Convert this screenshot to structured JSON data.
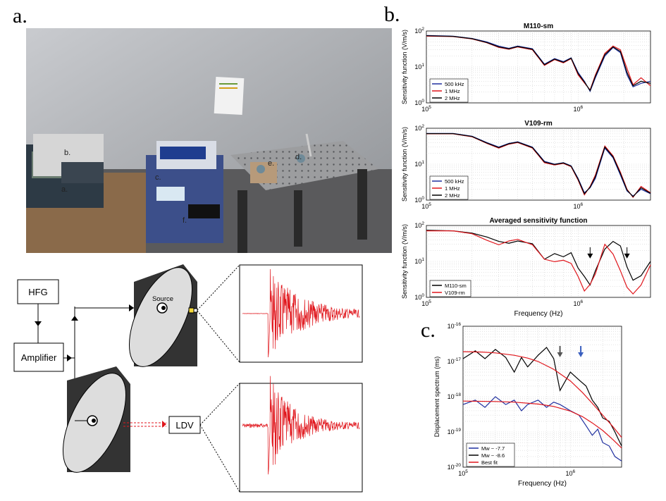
{
  "panel_labels": {
    "a": "a.",
    "b": "b.",
    "c": "c."
  },
  "photo": {
    "labels": [
      {
        "key": "a",
        "text": "a."
      },
      {
        "key": "b",
        "text": "b."
      },
      {
        "key": "c",
        "text": "c."
      },
      {
        "key": "d",
        "text": "d."
      },
      {
        "key": "e",
        "text": "e."
      },
      {
        "key": "f",
        "text": "f."
      }
    ]
  },
  "schematic": {
    "hfg": "HFG",
    "amplifier": "Amplifier",
    "source": "Source",
    "ldv": "LDV"
  },
  "colors": {
    "blue": "#1f2f9f",
    "red": "#e0161c",
    "black": "#000000"
  },
  "chart_data": [
    {
      "type": "line",
      "title": "M110-sm",
      "xlabel": "",
      "ylabel": "Sensitivity function (V/m/s)",
      "xscale": "log",
      "yscale": "log",
      "xlim": [
        100000,
        3000000
      ],
      "ylim": [
        1,
        100
      ],
      "xticks": [
        "10^5",
        "10^6"
      ],
      "yticks": [
        "10^0",
        "10^1",
        "10^2"
      ],
      "grid": true,
      "legend": "bottom-left",
      "series": [
        {
          "name": "500 kHz",
          "color": "#1f2f9f",
          "x": [
            100000,
            150000,
            200000,
            250000,
            300000,
            350000,
            400000,
            500000,
            600000,
            700000,
            800000,
            900000,
            1000000,
            1100000,
            1200000,
            1300000,
            1500000,
            1700000,
            1900000,
            2100000,
            2300000,
            2600000,
            3000000
          ],
          "y": [
            75,
            72,
            62,
            50,
            38,
            33,
            38,
            32,
            12,
            17,
            14,
            18,
            7,
            4,
            2.1,
            5,
            20,
            35,
            25,
            6,
            2.8,
            3.5,
            4
          ]
        },
        {
          "name": "1 MHz",
          "color": "#e0161c",
          "x": [
            100000,
            150000,
            200000,
            250000,
            300000,
            350000,
            400000,
            500000,
            600000,
            700000,
            800000,
            900000,
            1000000,
            1100000,
            1200000,
            1300000,
            1500000,
            1700000,
            1900000,
            2100000,
            2300000,
            2600000,
            3000000
          ],
          "y": [
            72,
            70,
            60,
            47,
            35,
            31,
            36,
            30,
            11,
            16,
            13,
            17,
            6,
            3.6,
            2.3,
            6,
            24,
            38,
            30,
            9,
            3.2,
            5,
            3
          ]
        },
        {
          "name": "2 MHz",
          "color": "#000000",
          "x": [
            100000,
            150000,
            200000,
            250000,
            300000,
            350000,
            400000,
            500000,
            600000,
            700000,
            800000,
            900000,
            1000000,
            1100000,
            1200000,
            1300000,
            1500000,
            1700000,
            1900000,
            2100000,
            2300000,
            2600000,
            3000000
          ],
          "y": [
            74,
            71,
            61,
            48,
            36,
            32,
            37,
            31,
            11.5,
            16.5,
            13.5,
            17.5,
            6.5,
            3.8,
            2.2,
            5.5,
            22,
            36,
            27,
            7,
            3,
            4,
            3.5
          ]
        }
      ]
    },
    {
      "type": "line",
      "title": "V109-rm",
      "xlabel": "",
      "ylabel": "Sensitivity function (V/m/s)",
      "xscale": "log",
      "yscale": "log",
      "xlim": [
        100000,
        3000000
      ],
      "ylim": [
        1,
        100
      ],
      "xticks": [
        "10^5",
        "10^6"
      ],
      "yticks": [
        "10^0",
        "10^1",
        "10^2"
      ],
      "grid": true,
      "legend": "bottom-left",
      "series": [
        {
          "name": "500 kHz",
          "color": "#1f2f9f",
          "x": [
            100000,
            150000,
            200000,
            250000,
            300000,
            350000,
            400000,
            500000,
            600000,
            700000,
            800000,
            900000,
            1000000,
            1100000,
            1200000,
            1300000,
            1500000,
            1700000,
            1900000,
            2100000,
            2300000,
            2600000,
            3000000
          ],
          "y": [
            72,
            72,
            60,
            40,
            30,
            38,
            42,
            30,
            12,
            10,
            11,
            9,
            4,
            1.6,
            2.2,
            4,
            28,
            15,
            5,
            1.8,
            1.3,
            2,
            1.5
          ]
        },
        {
          "name": "1 MHz",
          "color": "#e0161c",
          "x": [
            100000,
            150000,
            200000,
            250000,
            300000,
            350000,
            400000,
            500000,
            600000,
            700000,
            800000,
            900000,
            1000000,
            1100000,
            1200000,
            1300000,
            1500000,
            1700000,
            1900000,
            2100000,
            2300000,
            2600000,
            3000000
          ],
          "y": [
            70,
            70,
            58,
            38,
            28,
            36,
            40,
            28,
            11,
            9.5,
            10.5,
            8.5,
            3.6,
            1.4,
            2.4,
            5,
            32,
            17,
            6,
            2,
            1.2,
            2.4,
            1.6
          ]
        },
        {
          "name": "2 MHz",
          "color": "#000000",
          "x": [
            100000,
            150000,
            200000,
            250000,
            300000,
            350000,
            400000,
            500000,
            600000,
            700000,
            800000,
            900000,
            1000000,
            1100000,
            1200000,
            1300000,
            1500000,
            1700000,
            1900000,
            2100000,
            2300000,
            2600000,
            3000000
          ],
          "y": [
            71,
            71,
            59,
            39,
            29,
            37,
            41,
            29,
            11.5,
            9.8,
            10.8,
            8.8,
            3.8,
            1.5,
            2.3,
            4.5,
            30,
            16,
            5.5,
            1.9,
            1.25,
            2.2,
            1.55
          ]
        }
      ]
    },
    {
      "type": "line",
      "title": "Averaged sensitivity function",
      "xlabel": "Frequency (Hz)",
      "ylabel": "Sensitivity function (V/m/s)",
      "xscale": "log",
      "yscale": "log",
      "xlim": [
        100000,
        3000000
      ],
      "ylim": [
        1,
        100
      ],
      "xticks": [
        "10^5",
        "10^6"
      ],
      "yticks": [
        "10^0",
        "10^1",
        "10^2"
      ],
      "grid": true,
      "legend": "bottom-left",
      "series": [
        {
          "name": "M110-sm",
          "color": "#000000",
          "x": [
            100000,
            150000,
            200000,
            250000,
            300000,
            350000,
            400000,
            500000,
            600000,
            700000,
            800000,
            900000,
            1000000,
            1100000,
            1200000,
            1300000,
            1500000,
            1700000,
            1900000,
            2100000,
            2300000,
            2600000,
            3000000
          ],
          "y": [
            74,
            71,
            61,
            48,
            36,
            32,
            37,
            31,
            11.5,
            16.5,
            13.5,
            17.5,
            6.5,
            3.8,
            2.2,
            5.5,
            22,
            36,
            27,
            7,
            3,
            4,
            10
          ]
        },
        {
          "name": "V109-rm",
          "color": "#e0161c",
          "x": [
            100000,
            150000,
            200000,
            250000,
            300000,
            350000,
            400000,
            500000,
            600000,
            700000,
            800000,
            900000,
            1000000,
            1100000,
            1200000,
            1300000,
            1500000,
            1700000,
            1900000,
            2100000,
            2300000,
            2600000,
            3000000
          ],
          "y": [
            71,
            71,
            59,
            39,
            29,
            37,
            41,
            29,
            11.5,
            9.8,
            10.8,
            8.8,
            3.8,
            1.5,
            2.3,
            4.5,
            30,
            16,
            5.5,
            1.9,
            1.25,
            2.2,
            8
          ]
        }
      ],
      "annotations": [
        {
          "type": "arrow",
          "x": 1200000
        },
        {
          "type": "arrow",
          "x": 2100000
        }
      ]
    },
    {
      "type": "line",
      "title": "",
      "xlabel": "Frequency (Hz)",
      "ylabel": "Displacement spectrum (ms)",
      "xscale": "log",
      "yscale": "log",
      "xlim": [
        100000,
        3000000
      ],
      "ylim": [
        1e-20,
        1e-16
      ],
      "xticks": [
        "10^5",
        "10^6"
      ],
      "yticks": [
        "10^-20",
        "10^-19",
        "10^-18",
        "10^-17",
        "10^-16"
      ],
      "grid": true,
      "legend": "bottom-left",
      "series": [
        {
          "name": "Mw ~ -7.7",
          "color": "#1f2f9f",
          "x": [
            100000,
            130000,
            160000,
            200000,
            250000,
            300000,
            350000,
            400000,
            500000,
            600000,
            700000,
            800000,
            1000000,
            1200000,
            1400000,
            1600000,
            1800000,
            2000000,
            2300000,
            2600000,
            3000000
          ],
          "y": [
            6e-19,
            8e-19,
            5e-19,
            1e-18,
            6e-19,
            8e-19,
            4e-19,
            6e-19,
            8e-19,
            5e-19,
            7e-19,
            6e-19,
            4e-19,
            3e-19,
            1.5e-19,
            8e-20,
            1.2e-19,
            5e-20,
            4e-20,
            2e-20,
            1.5e-20
          ]
        },
        {
          "name": "Mw ~ -8.6",
          "color": "#000000",
          "x": [
            100000,
            130000,
            160000,
            200000,
            250000,
            300000,
            350000,
            400000,
            500000,
            600000,
            700000,
            800000,
            1000000,
            1200000,
            1400000,
            1600000,
            1800000,
            2000000,
            2300000,
            2600000,
            3000000
          ],
          "y": [
            1.2e-17,
            2e-17,
            1.2e-17,
            2.2e-17,
            1.3e-17,
            5e-18,
            1.3e-17,
            7e-18,
            1.5e-17,
            2.5e-17,
            1.2e-17,
            1.5e-18,
            5e-18,
            3e-18,
            2e-18,
            8e-19,
            5e-19,
            2.5e-19,
            2e-19,
            1e-19,
            4e-20
          ]
        },
        {
          "name": "Best  fit",
          "color": "#e0161c",
          "x": [
            100000,
            150000,
            200000,
            300000,
            400000,
            500000,
            700000,
            1000000,
            1300000,
            1600000,
            2000000,
            2500000,
            3000000
          ],
          "y": [
            1.9e-17,
            1.85e-17,
            1.75e-17,
            1.5e-17,
            1.25e-17,
            1e-17,
            6e-18,
            2.8e-18,
            1.3e-18,
            6.5e-19,
            3e-19,
            1.4e-19,
            7e-20
          ]
        },
        {
          "name": "",
          "color": "#e0161c",
          "x": [
            100000,
            200000,
            300000,
            500000,
            700000,
            1000000,
            1300000,
            1600000,
            2000000,
            2500000,
            3000000
          ],
          "y": [
            7.5e-19,
            7.3e-19,
            7e-19,
            6.2e-19,
            5.3e-19,
            3.9e-19,
            2.7e-19,
            1.8e-19,
            1.1e-19,
            6e-20,
            3.5e-20
          ]
        }
      ],
      "annotations": [
        {
          "type": "arrow",
          "x": 800000,
          "color": "#555555"
        },
        {
          "type": "arrow",
          "x": 1250000,
          "color": "#3a5fbf"
        }
      ]
    }
  ]
}
